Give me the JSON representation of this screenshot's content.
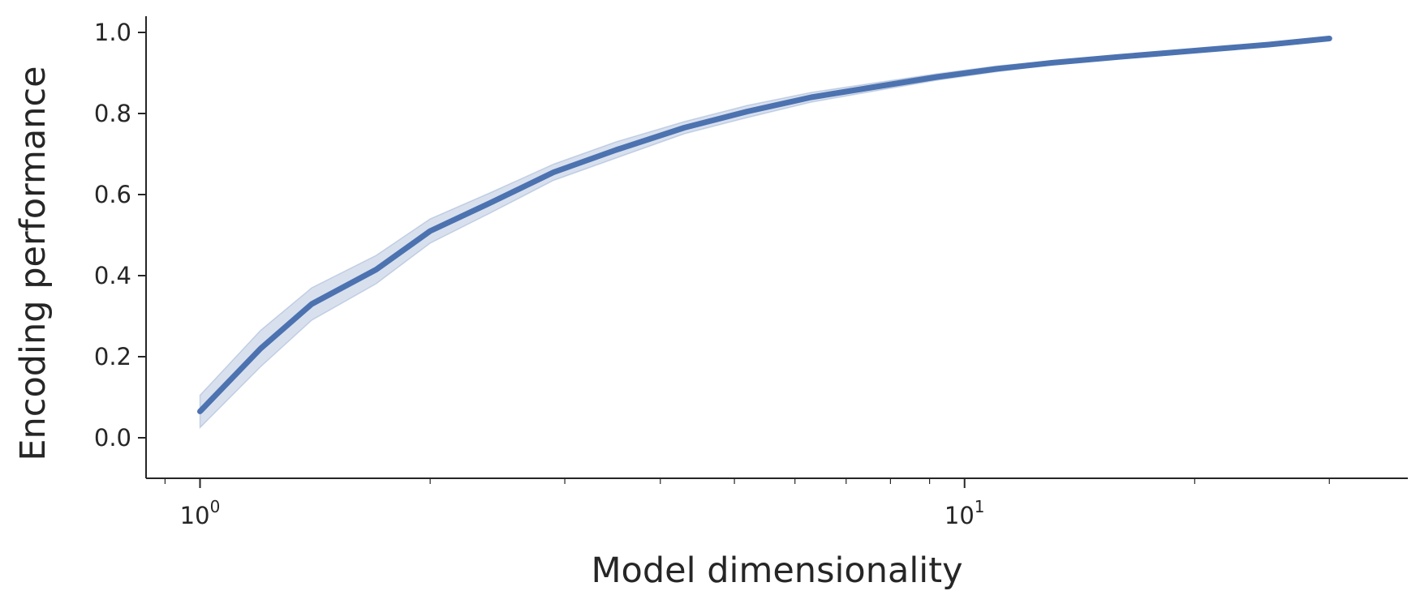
{
  "chart_data": {
    "type": "line",
    "xlabel": "Model dimensionality",
    "ylabel": "Encoding performance",
    "x_scale": "log",
    "xlim": [
      0.85,
      38
    ],
    "ylim": [
      -0.1,
      1.04
    ],
    "x_ticks": [
      {
        "value": 1,
        "base": "10",
        "exp": "0"
      },
      {
        "value": 10,
        "base": "10",
        "exp": "1"
      }
    ],
    "y_ticks": [
      "0.0",
      "0.2",
      "0.4",
      "0.6",
      "0.8",
      "1.0"
    ],
    "grid": false,
    "series": [
      {
        "color": "#4c72b0",
        "band_color": "#4c72b0",
        "x": [
          1,
          1.2,
          1.4,
          1.7,
          2,
          2.4,
          2.9,
          3.5,
          4.3,
          5.2,
          6.3,
          7.6,
          9.2,
          11,
          13,
          16,
          20,
          25,
          30
        ],
        "y": [
          0.065,
          0.22,
          0.33,
          0.415,
          0.51,
          0.58,
          0.655,
          0.71,
          0.765,
          0.805,
          0.84,
          0.865,
          0.89,
          0.91,
          0.925,
          0.94,
          0.955,
          0.97,
          0.985
        ],
        "y_lower": [
          0.025,
          0.175,
          0.29,
          0.38,
          0.48,
          0.555,
          0.635,
          0.69,
          0.75,
          0.79,
          0.828,
          0.855,
          0.882,
          0.903,
          0.92,
          0.936,
          0.951,
          0.967,
          0.982
        ],
        "y_upper": [
          0.105,
          0.265,
          0.37,
          0.45,
          0.54,
          0.605,
          0.675,
          0.73,
          0.78,
          0.82,
          0.852,
          0.875,
          0.898,
          0.917,
          0.93,
          0.944,
          0.959,
          0.973,
          0.988
        ]
      }
    ]
  }
}
